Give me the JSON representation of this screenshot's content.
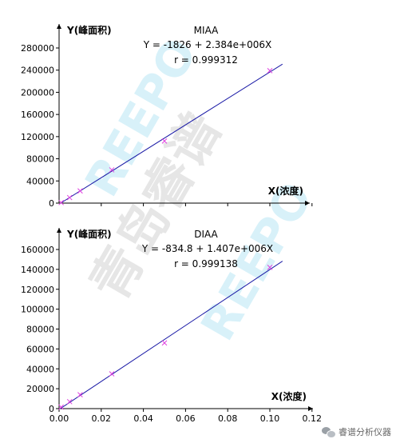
{
  "watermark": {
    "text_cn": "青岛睿谱",
    "text_en": "REEPO"
  },
  "footer": {
    "text": "睿谱分析仪器",
    "icon": "wechat-icon"
  },
  "colors": {
    "axis": "#000000",
    "fit_line": "#1a1aa6",
    "points": "#e040e0",
    "watermark": "#cfeef8",
    "watermark_gray": "#e6e6e6"
  },
  "chart_data": [
    {
      "type": "scatter",
      "title": "MIAA",
      "equation": "Y = -1826 + 2.384e+006X",
      "r_text": "r = 0.999312",
      "ylabel": "Y(峰面积)",
      "xlabel": "X(浓度)",
      "xlim": [
        0,
        0.125
      ],
      "ylim": [
        0,
        300000
      ],
      "y_ticks": [
        "0",
        "40000",
        "80000",
        "120000",
        "160000",
        "200000",
        "240000",
        "280000"
      ],
      "y_tick_values": [
        0,
        40000,
        80000,
        120000,
        160000,
        200000,
        240000,
        280000
      ],
      "x": [
        0.001,
        0.005,
        0.01,
        0.025,
        0.05,
        0.1
      ],
      "y": [
        1000,
        10000,
        22000,
        60000,
        112000,
        239000
      ],
      "fit": {
        "intercept": -1826,
        "slope": 2384000,
        "x_range": [
          0,
          0.106
        ]
      },
      "grid": false,
      "legend": "none"
    },
    {
      "type": "scatter",
      "title": "DIAA",
      "equation": "Y = -834.8 + 1.407e+006X",
      "r_text": "r = 0.999138",
      "ylabel": "Y(峰面积)",
      "xlabel": "X(浓度)",
      "xlim": [
        0,
        0.125
      ],
      "ylim": [
        0,
        170000
      ],
      "y_ticks": [
        "0",
        "20000",
        "40000",
        "60000",
        "80000",
        "100000",
        "120000",
        "140000",
        "160000"
      ],
      "y_tick_values": [
        0,
        20000,
        40000,
        60000,
        80000,
        100000,
        120000,
        140000,
        160000
      ],
      "x_ticks": [
        "0.00",
        "0.02",
        "0.04",
        "0.06",
        "0.08",
        "0.10",
        "0.12"
      ],
      "x_tick_values": [
        0,
        0.02,
        0.04,
        0.06,
        0.08,
        0.1,
        0.12
      ],
      "x": [
        0.001,
        0.005,
        0.01,
        0.025,
        0.05,
        0.1
      ],
      "y": [
        1500,
        7000,
        14000,
        35000,
        66000,
        142000
      ],
      "fit": {
        "intercept": -834.8,
        "slope": 1407000,
        "x_range": [
          0,
          0.106
        ]
      },
      "grid": false,
      "legend": "none"
    }
  ]
}
